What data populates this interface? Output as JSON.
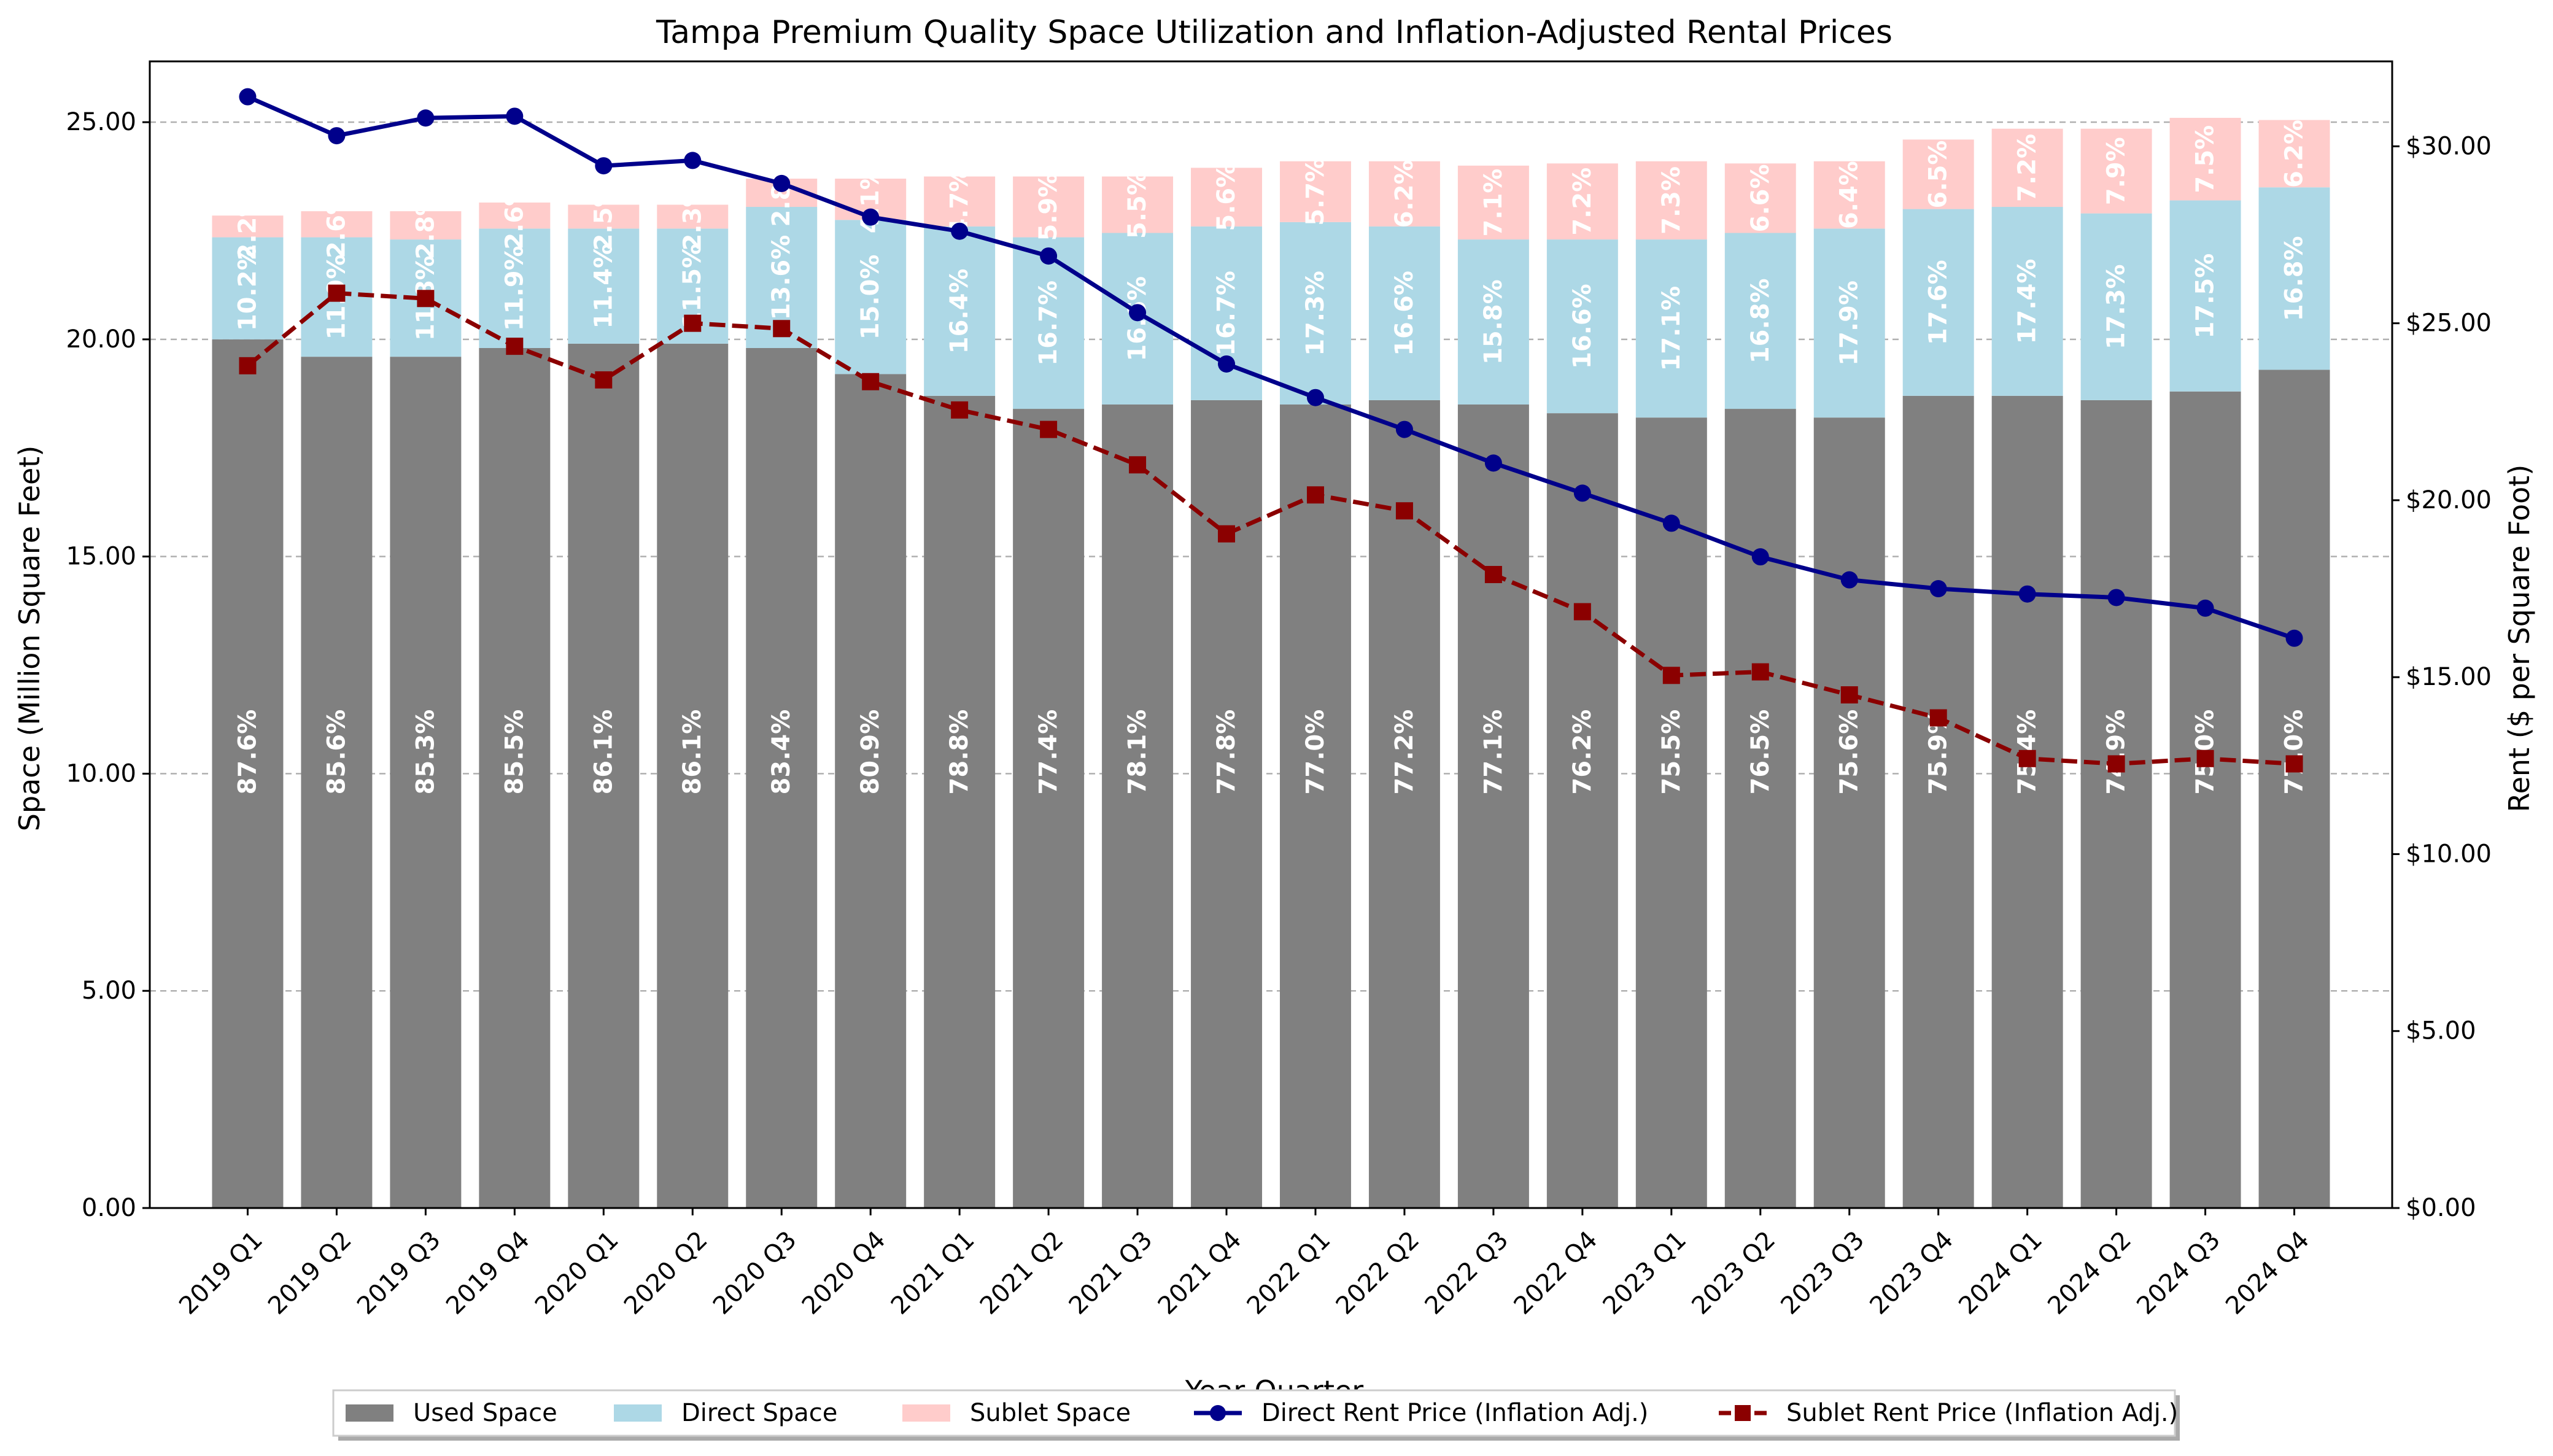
{
  "chart_data": {
    "type": "bar",
    "title": "Tampa Premium Quality Space Utilization and Inflation-Adjusted Rental Prices",
    "xlabel": "Year-Quarter",
    "ylabel": "Space (Million Square Feet)",
    "y2label": "Rent ($ per Square Foot)",
    "ylim": [
      0,
      26.4
    ],
    "y2lim": [
      0,
      32.4
    ],
    "yticks": [
      "0.00",
      "5.00",
      "10.00",
      "15.00",
      "20.00",
      "25.00"
    ],
    "y2ticks": [
      "$0.00",
      "$5.00",
      "$10.00",
      "$15.00",
      "$20.00",
      "$25.00",
      "$30.00"
    ],
    "grid": true,
    "legend_position": "bottom-center",
    "categories": [
      "2019 Q1",
      "2019 Q2",
      "2019 Q3",
      "2019 Q4",
      "2020 Q1",
      "2020 Q2",
      "2020 Q3",
      "2020 Q4",
      "2021 Q1",
      "2021 Q2",
      "2021 Q3",
      "2021 Q4",
      "2022 Q1",
      "2022 Q2",
      "2022 Q3",
      "2022 Q4",
      "2023 Q1",
      "2023 Q2",
      "2023 Q3",
      "2023 Q4",
      "2024 Q1",
      "2024 Q2",
      "2024 Q3",
      "2024 Q4"
    ],
    "series": [
      {
        "name": "Used Space",
        "kind": "bar",
        "color": "#808080",
        "values": [
          20.0,
          19.6,
          19.6,
          19.8,
          19.9,
          19.9,
          19.8,
          19.2,
          18.7,
          18.4,
          18.5,
          18.6,
          18.5,
          18.6,
          18.5,
          18.3,
          18.2,
          18.4,
          18.2,
          18.7,
          18.7,
          18.6,
          18.8,
          19.3
        ],
        "labels": [
          "87.6%",
          "85.6%",
          "85.3%",
          "85.5%",
          "86.1%",
          "86.1%",
          "83.4%",
          "80.9%",
          "78.8%",
          "77.4%",
          "78.1%",
          "77.8%",
          "77.0%",
          "77.2%",
          "77.1%",
          "76.2%",
          "75.5%",
          "76.5%",
          "75.6%",
          "75.9%",
          "75.4%",
          "74.9%",
          "75.0%",
          "77.0%"
        ]
      },
      {
        "name": "Direct Space",
        "kind": "bar",
        "color": "#add8e6",
        "values": [
          2.35,
          2.75,
          2.7,
          2.75,
          2.65,
          2.65,
          3.25,
          3.55,
          3.9,
          3.95,
          3.95,
          4.0,
          4.2,
          4.0,
          3.8,
          4.0,
          4.1,
          4.05,
          4.35,
          4.3,
          4.35,
          4.3,
          4.4,
          4.2
        ],
        "labels": [
          "10.2%",
          "11.9%",
          "11.8%",
          "11.9%",
          "11.4%",
          "11.5%",
          "13.6%",
          "15.0%",
          "16.4%",
          "16.7%",
          "16.6%",
          "16.7%",
          "17.3%",
          "16.6%",
          "15.8%",
          "16.6%",
          "17.1%",
          "16.8%",
          "17.9%",
          "17.6%",
          "17.4%",
          "17.3%",
          "17.5%",
          "16.8%"
        ]
      },
      {
        "name": "Sublet Space",
        "kind": "bar",
        "color": "#ffcccb",
        "values": [
          0.5,
          0.6,
          0.65,
          0.6,
          0.55,
          0.55,
          0.65,
          0.95,
          1.15,
          1.4,
          1.3,
          1.35,
          1.4,
          1.5,
          1.7,
          1.75,
          1.8,
          1.6,
          1.55,
          1.6,
          1.8,
          1.95,
          1.9,
          1.55
        ],
        "labels": [
          "2.2%",
          "2.6%",
          "2.8%",
          "2.6%",
          "2.5%",
          "2.3%",
          "2.8%",
          "4.1%",
          "4.7%",
          "5.9%",
          "5.5%",
          "5.6%",
          "5.7%",
          "6.2%",
          "7.1%",
          "7.2%",
          "7.3%",
          "6.6%",
          "6.4%",
          "6.5%",
          "7.2%",
          "7.9%",
          "7.5%",
          "6.2%"
        ]
      },
      {
        "name": "Direct Rent Price (Inflation Adj.)",
        "kind": "line",
        "axis": "right",
        "color": "#00008b",
        "style": "solid",
        "marker": "circle",
        "values": [
          31.4,
          30.3,
          30.8,
          30.85,
          29.45,
          29.6,
          28.95,
          28.0,
          27.6,
          26.9,
          25.3,
          23.85,
          22.9,
          22.0,
          21.05,
          20.2,
          19.35,
          18.4,
          17.75,
          17.5,
          17.35,
          17.25,
          16.95,
          16.1
        ]
      },
      {
        "name": "Sublet Rent Price (Inflation Adj.)",
        "kind": "line",
        "axis": "right",
        "color": "#8b0000",
        "style": "dashed",
        "marker": "square",
        "values": [
          23.8,
          25.85,
          25.7,
          24.35,
          23.4,
          25.0,
          24.85,
          23.35,
          22.55,
          22.0,
          21.0,
          19.05,
          20.15,
          19.7,
          17.9,
          16.85,
          15.05,
          15.15,
          14.5,
          13.85,
          12.7,
          12.55,
          12.7,
          12.55
        ]
      }
    ]
  }
}
